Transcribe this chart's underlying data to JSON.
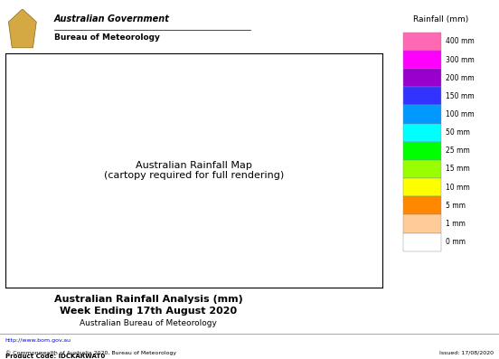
{
  "title_line1": "Australian Rainfall Analysis (mm)",
  "title_line2": "Week Ending 17th August 2020",
  "title_line3": "Australian Bureau of Meteorology",
  "colorbar_title": "Rainfall (mm)",
  "colorbar_labels": [
    "400 mm",
    "300 mm",
    "200 mm",
    "150 mm",
    "100 mm",
    "50 mm",
    "25 mm",
    "15 mm",
    "10 mm",
    "5 mm",
    "1 mm",
    "0 mm"
  ],
  "colorbar_colors": [
    "#ff69b4",
    "#ff00ff",
    "#9900cc",
    "#3333ff",
    "#0099ff",
    "#00ffff",
    "#00ff00",
    "#99ff00",
    "#ffff00",
    "#ff8800",
    "#ffcc99",
    "#ffffff"
  ],
  "colorbar_boundaries": [
    400,
    300,
    200,
    150,
    100,
    50,
    25,
    15,
    10,
    5,
    1,
    0
  ],
  "header_text1": "Australian Government",
  "header_text2": "Bureau of Meteorology",
  "footer_left": "http://www.bom.gov.au",
  "footer_copyright": "© Commonwealth of Australia 2020, Bureau of Meteorology",
  "footer_product": "Product Code: IDCKARWAT0",
  "footer_issued": "Issued: 17/08/2020",
  "bg_color": "#ffffff",
  "map_bg": "#ffffff",
  "border_color": "#cccccc"
}
